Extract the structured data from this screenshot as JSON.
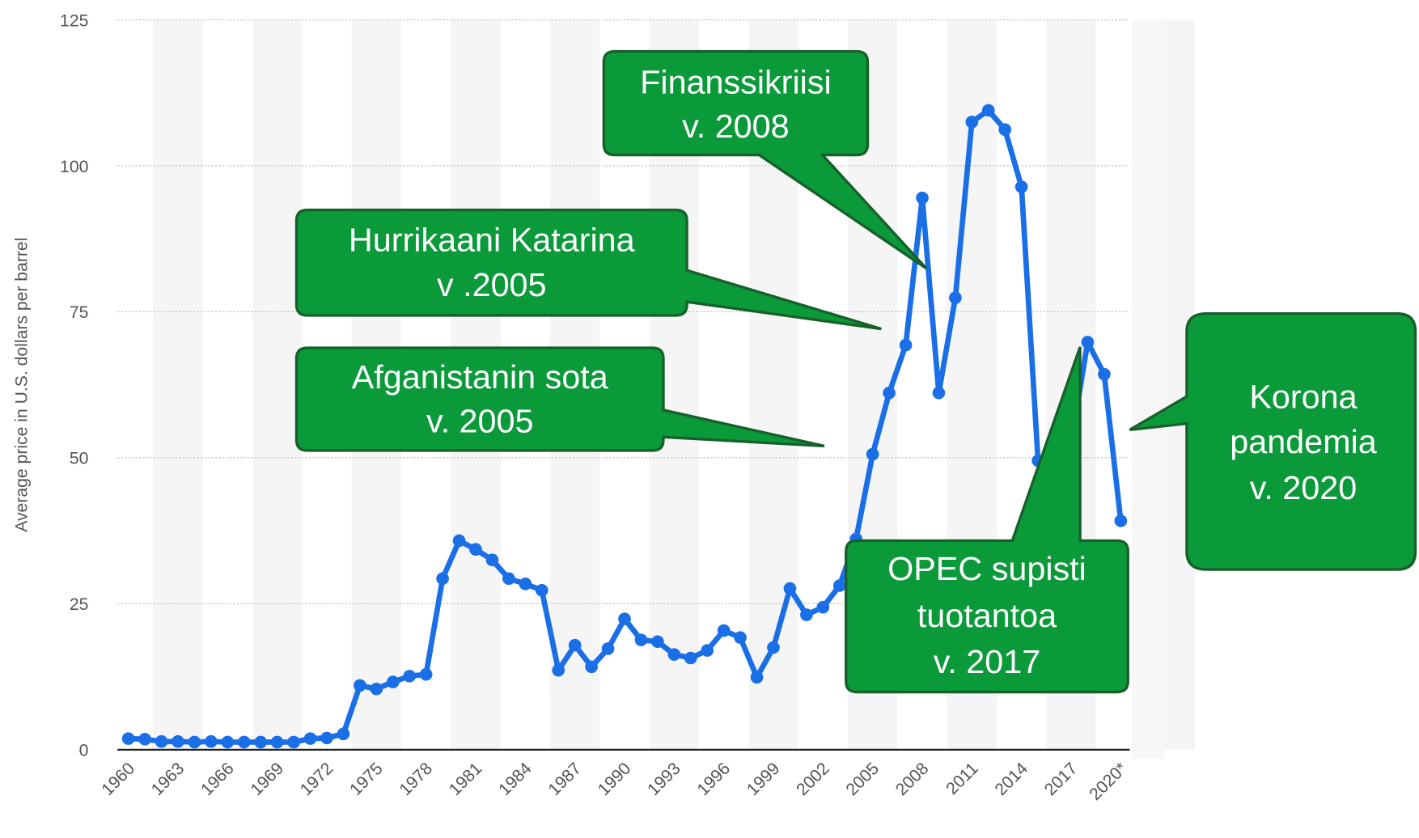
{
  "chart_data": {
    "type": "line",
    "y_label": "Average price in U.S. dollars per barrel",
    "categories": [
      "1960",
      null,
      null,
      "1963",
      null,
      null,
      "1966",
      null,
      null,
      "1969",
      null,
      null,
      "1972",
      null,
      null,
      "1975",
      null,
      null,
      "1978",
      null,
      null,
      "1981",
      null,
      null,
      "1984",
      null,
      null,
      "1987",
      null,
      null,
      "1990",
      null,
      null,
      "1993",
      null,
      null,
      "1996",
      null,
      null,
      "1999",
      null,
      null,
      "2002",
      null,
      null,
      "2005",
      null,
      null,
      "2008",
      null,
      null,
      "2011",
      null,
      null,
      "2014",
      null,
      null,
      "2017",
      null,
      null,
      "2020*"
    ],
    "values": [
      1.9,
      1.8,
      1.4,
      1.4,
      1.3,
      1.4,
      1.3,
      1.3,
      1.3,
      1.3,
      1.3,
      1.9,
      2.0,
      2.7,
      11.0,
      10.4,
      11.6,
      12.6,
      12.9,
      29.3,
      35.8,
      34.3,
      32.5,
      29.3,
      28.4,
      27.3,
      13.6,
      17.9,
      14.2,
      17.3,
      22.4,
      18.8,
      18.5,
      16.3,
      15.7,
      17.0,
      20.4,
      19.2,
      12.4,
      17.5,
      27.6,
      23.1,
      24.4,
      28.1,
      36.1,
      50.6,
      61.1,
      69.3,
      94.5,
      61.1,
      77.4,
      107.5,
      109.5,
      106.2,
      96.4,
      49.5,
      40.8,
      52.5,
      69.8,
      64.3,
      39.2
    ],
    "color": "#1a6fe6",
    "ylim": [
      0,
      125
    ],
    "yticks": [
      0,
      25,
      50,
      75,
      100,
      125
    ],
    "grid": true,
    "annotations": [
      [
        "Finanssikriisi",
        "v. 2008"
      ],
      [
        "Hurrikaani Katarina",
        "v .2005"
      ],
      [
        "Afganistanin sota",
        "v. 2005"
      ],
      [
        "OPEC supisti",
        "tuotantoa",
        "v. 2017"
      ],
      [
        "Korona",
        "pandemia",
        "v. 2020"
      ]
    ]
  }
}
